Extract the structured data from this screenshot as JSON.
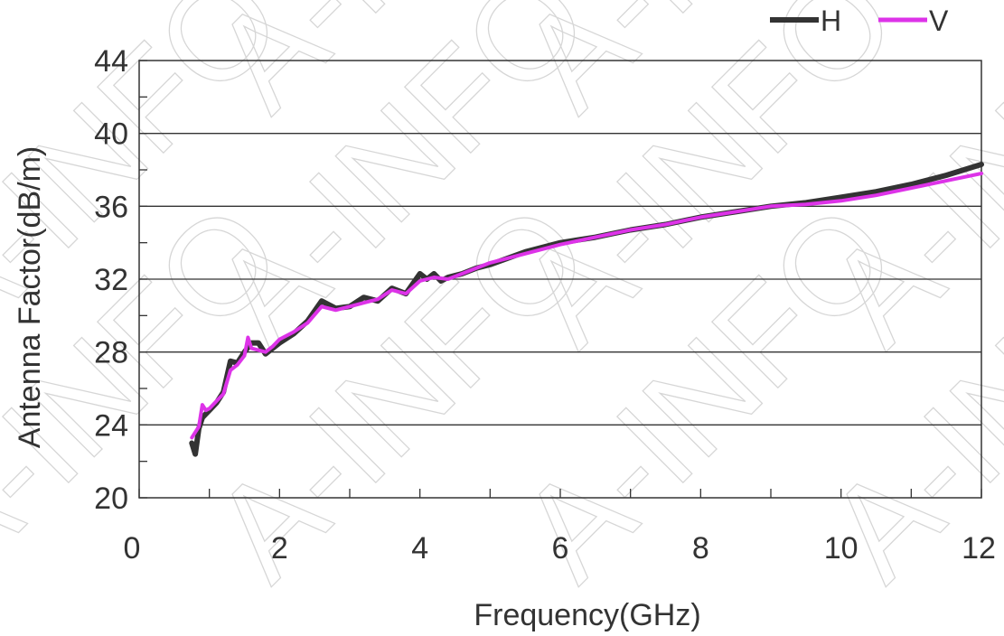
{
  "watermark": "A-INFO",
  "chart_data": {
    "type": "line",
    "xlabel": "Frequency(GHz)",
    "ylabel": "Antenna Factor(dB/m)",
    "xlim": [
      0,
      12
    ],
    "ylim": [
      20,
      44
    ],
    "xticks": [
      0,
      2,
      4,
      6,
      8,
      10,
      12
    ],
    "yticks": [
      20,
      24,
      28,
      32,
      36,
      40,
      44
    ],
    "grid": "horizontal",
    "legend_position": "top-right",
    "series": [
      {
        "name": "H",
        "color": "#333333",
        "x": [
          0.75,
          0.8,
          0.85,
          0.9,
          0.95,
          1.0,
          1.1,
          1.2,
          1.3,
          1.4,
          1.5,
          1.6,
          1.7,
          1.8,
          1.9,
          2.0,
          2.2,
          2.4,
          2.6,
          2.8,
          3.0,
          3.2,
          3.4,
          3.6,
          3.8,
          4.0,
          4.1,
          4.2,
          4.3,
          4.4,
          4.6,
          4.8,
          5.0,
          5.5,
          6.0,
          6.5,
          7.0,
          7.5,
          8.0,
          8.5,
          9.0,
          9.5,
          10.0,
          10.5,
          11.0,
          11.5,
          12.0
        ],
        "y": [
          23.0,
          22.4,
          23.8,
          24.4,
          24.6,
          24.8,
          25.2,
          25.8,
          27.5,
          27.4,
          28.0,
          28.5,
          28.5,
          27.9,
          28.2,
          28.5,
          29.0,
          29.7,
          30.8,
          30.4,
          30.5,
          31.0,
          30.8,
          31.5,
          31.2,
          32.3,
          32.0,
          32.3,
          31.9,
          32.1,
          32.3,
          32.6,
          32.8,
          33.5,
          34.0,
          34.3,
          34.7,
          35.0,
          35.4,
          35.7,
          36.0,
          36.2,
          36.5,
          36.8,
          37.2,
          37.7,
          38.3
        ]
      },
      {
        "name": "V",
        "color": "#dd33e8",
        "x": [
          0.75,
          0.8,
          0.85,
          0.9,
          0.95,
          1.0,
          1.1,
          1.2,
          1.3,
          1.4,
          1.5,
          1.55,
          1.6,
          1.7,
          1.8,
          1.9,
          2.0,
          2.2,
          2.4,
          2.6,
          2.8,
          3.0,
          3.2,
          3.4,
          3.6,
          3.8,
          4.0,
          4.2,
          4.4,
          4.6,
          4.8,
          5.0,
          5.5,
          6.0,
          6.5,
          7.0,
          7.5,
          8.0,
          8.5,
          9.0,
          9.5,
          10.0,
          10.5,
          11.0,
          11.5,
          12.0
        ],
        "y": [
          23.3,
          23.6,
          23.9,
          25.1,
          24.8,
          24.9,
          25.3,
          25.7,
          27.0,
          27.3,
          27.8,
          28.8,
          28.2,
          28.1,
          28.0,
          28.3,
          28.7,
          29.1,
          29.6,
          30.5,
          30.3,
          30.5,
          30.7,
          30.9,
          31.4,
          31.2,
          31.9,
          32.1,
          32.0,
          32.3,
          32.6,
          32.9,
          33.4,
          33.9,
          34.3,
          34.7,
          35.0,
          35.4,
          35.7,
          36.0,
          36.1,
          36.3,
          36.6,
          37.0,
          37.4,
          37.8
        ]
      }
    ]
  }
}
